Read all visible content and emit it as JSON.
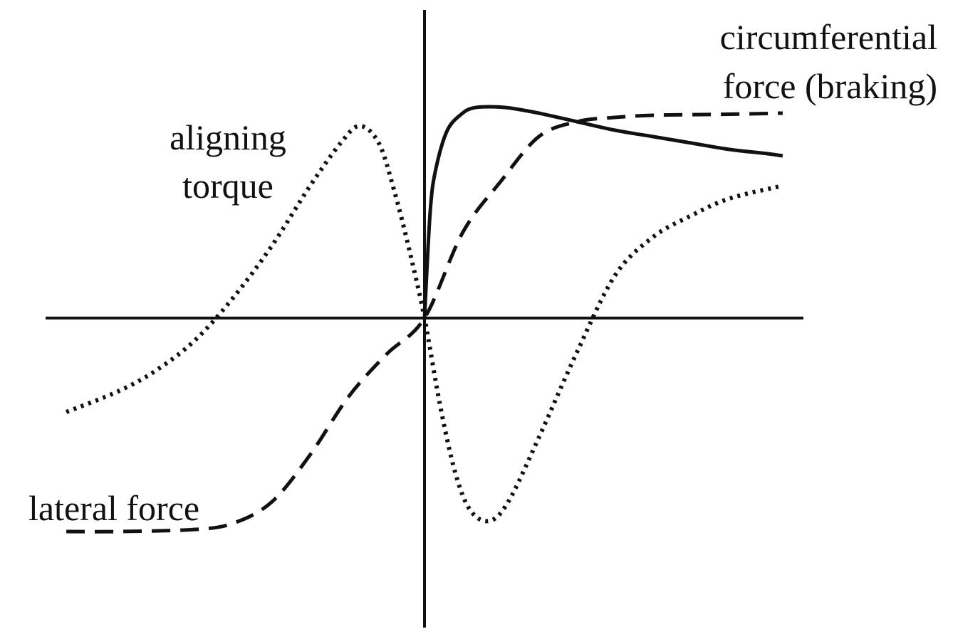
{
  "chart_data": {
    "type": "line",
    "title": "",
    "xlabel": "",
    "ylabel": "",
    "grid": false,
    "xlim": [
      -1.0,
      1.0
    ],
    "ylim": [
      -1.0,
      1.0
    ],
    "annotations": [
      {
        "lines": [
          "circumferential",
          "force (braking)"
        ],
        "series": "circumferential force (braking)"
      },
      {
        "lines": [
          "aligning",
          "torque"
        ],
        "series": "aligning torque"
      },
      {
        "lines": [
          "lateral force"
        ],
        "series": "lateral force"
      }
    ],
    "series": [
      {
        "name": "circumferential force (braking)",
        "style": "solid",
        "x": [
          0.0,
          0.015,
          0.03,
          0.06,
          0.1,
          0.13,
          0.17,
          0.22,
          0.3,
          0.4,
          0.5,
          0.6,
          0.7,
          0.8,
          0.9,
          0.94
        ],
        "y": [
          0.0,
          0.5,
          0.7,
          0.88,
          0.96,
          0.985,
          0.99,
          0.985,
          0.96,
          0.92,
          0.88,
          0.85,
          0.82,
          0.79,
          0.77,
          0.76
        ]
      },
      {
        "name": "lateral force",
        "style": "dashed",
        "x": [
          -0.94,
          -0.8,
          -0.6,
          -0.5,
          -0.4,
          -0.3,
          -0.2,
          -0.1,
          0.0,
          0.1,
          0.2,
          0.3,
          0.4,
          0.5,
          0.6,
          0.8,
          0.94
        ],
        "y": [
          -1.0,
          -1.0,
          -0.99,
          -0.96,
          -0.86,
          -0.64,
          -0.37,
          -0.17,
          0.0,
          0.4,
          0.64,
          0.85,
          0.92,
          0.94,
          0.95,
          0.955,
          0.96
        ]
      },
      {
        "name": "aligning torque",
        "style": "dotted",
        "x": [
          -0.94,
          -0.8,
          -0.7,
          -0.6,
          -0.5,
          -0.4,
          -0.3,
          -0.22,
          -0.17,
          -0.12,
          -0.08,
          -0.04,
          0.0,
          0.04,
          0.08,
          0.12,
          0.17,
          0.22,
          0.3,
          0.4,
          0.5,
          0.6,
          0.7,
          0.8,
          0.94
        ],
        "y": [
          -0.44,
          -0.34,
          -0.24,
          -0.1,
          0.1,
          0.34,
          0.62,
          0.82,
          0.9,
          0.82,
          0.6,
          0.32,
          0.0,
          -0.4,
          -0.72,
          -0.9,
          -0.95,
          -0.86,
          -0.56,
          -0.16,
          0.2,
          0.38,
          0.48,
          0.56,
          0.62
        ]
      }
    ]
  }
}
